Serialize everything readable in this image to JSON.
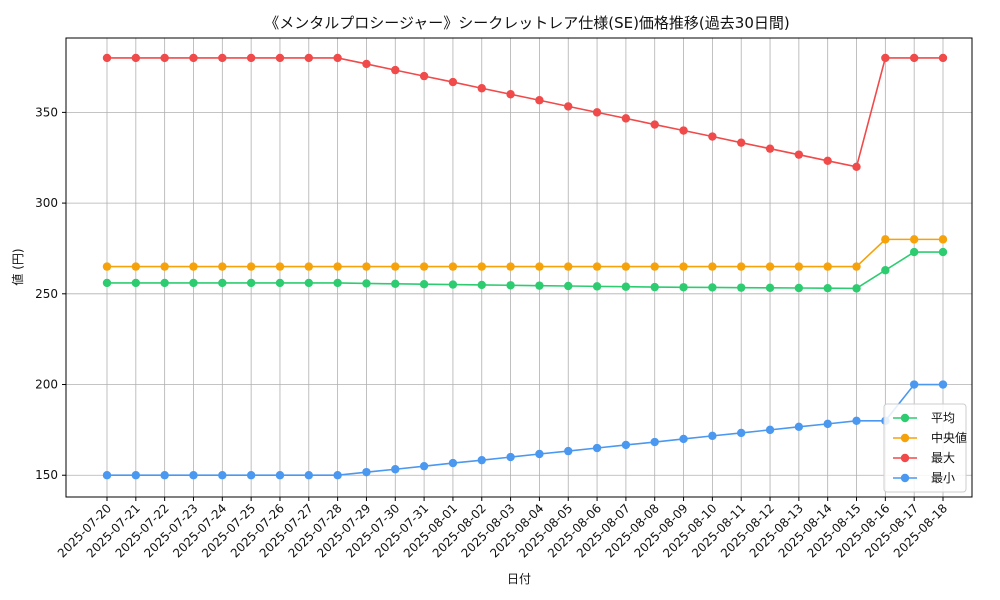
{
  "chart_data": {
    "type": "line",
    "title": "《メンタルプロシージャー》シークレットレア仕様(SE)価格推移(過去30日間)",
    "xlabel": "日付",
    "ylabel": "値 (円)",
    "ylim": [
      138,
      391
    ],
    "yticks": [
      150,
      200,
      250,
      300,
      350
    ],
    "grid": true,
    "legend_position": "bottom-right",
    "categories": [
      "2025-07-20",
      "2025-07-21",
      "2025-07-22",
      "2025-07-23",
      "2025-07-24",
      "2025-07-25",
      "2025-07-26",
      "2025-07-27",
      "2025-07-28",
      "2025-07-29",
      "2025-07-30",
      "2025-07-31",
      "2025-08-01",
      "2025-08-02",
      "2025-08-03",
      "2025-08-04",
      "2025-08-05",
      "2025-08-06",
      "2025-08-07",
      "2025-08-08",
      "2025-08-09",
      "2025-08-10",
      "2025-08-11",
      "2025-08-12",
      "2025-08-13",
      "2025-08-14",
      "2025-08-15",
      "2025-08-16",
      "2025-08-17",
      "2025-08-18"
    ],
    "series": [
      {
        "name": "平均",
        "color": "#2ecc71",
        "values": [
          256,
          256,
          256,
          256,
          256,
          256,
          256,
          256,
          256,
          255.7,
          255.5,
          255.3,
          255.1,
          254.9,
          254.7,
          254.5,
          254.3,
          254.1,
          253.9,
          253.7,
          253.6,
          253.5,
          253.4,
          253.3,
          253.2,
          253.1,
          253,
          263,
          273,
          273
        ]
      },
      {
        "name": "中央値",
        "color": "#f5a20b",
        "values": [
          265,
          265,
          265,
          265,
          265,
          265,
          265,
          265,
          265,
          265,
          265,
          265,
          265,
          265,
          265,
          265,
          265,
          265,
          265,
          265,
          265,
          265,
          265,
          265,
          265,
          265,
          265,
          280,
          280,
          280
        ]
      },
      {
        "name": "最大",
        "color": "#f04a4a",
        "values": [
          380,
          380,
          380,
          380,
          380,
          380,
          380,
          380,
          380,
          376.7,
          373.3,
          370,
          366.7,
          363.3,
          360,
          356.7,
          353.3,
          350,
          346.7,
          343.3,
          340,
          336.7,
          333.3,
          330,
          326.7,
          323.3,
          320,
          380,
          380,
          380
        ]
      },
      {
        "name": "最小",
        "color": "#4a98f0",
        "values": [
          150,
          150,
          150,
          150,
          150,
          150,
          150,
          150,
          150,
          151.7,
          153.3,
          155,
          156.7,
          158.3,
          160,
          161.7,
          163.3,
          165,
          166.7,
          168.3,
          170,
          171.7,
          173.3,
          175,
          176.7,
          178.3,
          180,
          180,
          200,
          200
        ]
      }
    ]
  }
}
